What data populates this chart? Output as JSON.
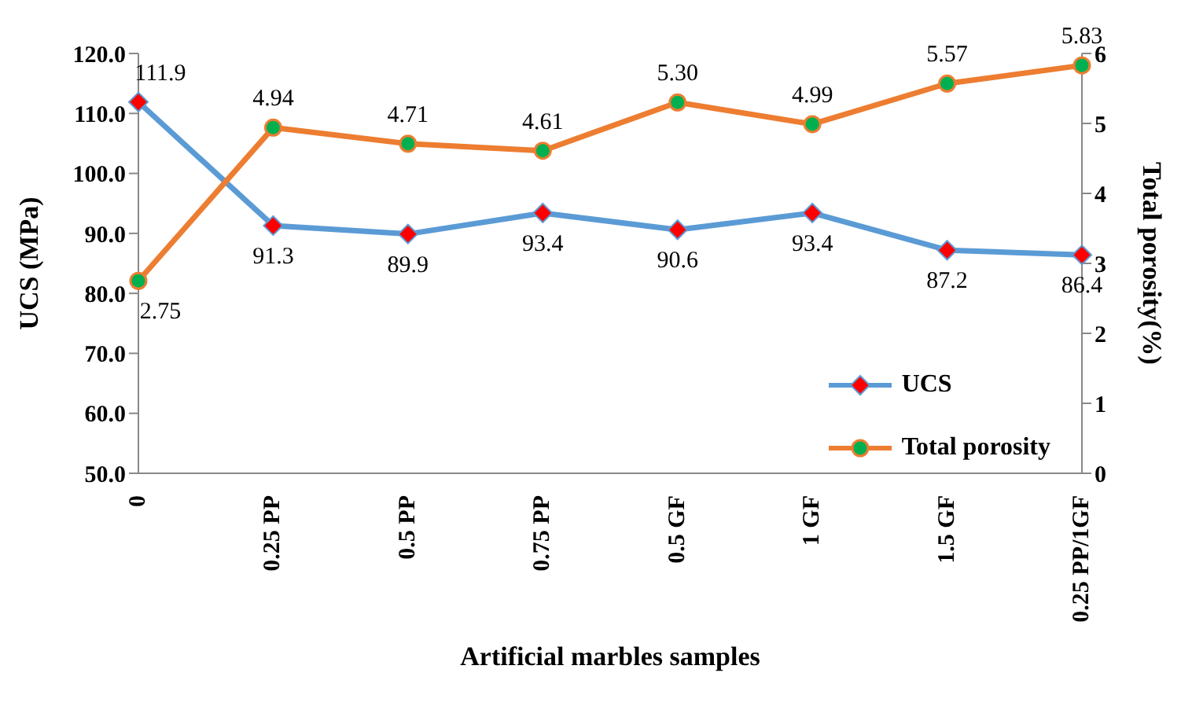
{
  "chart_data": {
    "type": "line",
    "xlabel": "Artificial marbles samples",
    "ylabel": "UCS (MPa)",
    "y2label": "Total porosity(%)",
    "categories": [
      "0",
      "0.25 PP",
      "0.5 PP",
      "0.75 PP",
      "0.5 GF",
      "1 GF",
      "1.5 GF",
      "0.25 PP/1GF"
    ],
    "series": [
      {
        "name": "UCS",
        "color": "#5b9bd5",
        "marker": "diamond",
        "values": [
          111.9,
          91.3,
          89.9,
          93.4,
          90.6,
          93.4,
          87.2,
          86.4
        ],
        "value_labels": [
          "111.9",
          "91.3",
          "89.9",
          "93.4",
          "90.6",
          "93.4",
          "87.2",
          "86.4"
        ]
      },
      {
        "name": "Total porosity",
        "color": "#ed7d31",
        "marker": "circle",
        "axis": "y2",
        "values": [
          2.75,
          4.94,
          4.71,
          4.61,
          5.3,
          4.99,
          5.57,
          5.83
        ],
        "value_labels": [
          "2.75",
          "4.94",
          "4.71",
          "4.61",
          "5.30",
          "4.99",
          "5.57",
          "5.83"
        ]
      }
    ],
    "ylim": [
      50,
      120
    ],
    "yticks": [
      {
        "value": 50,
        "label": "50.0"
      },
      {
        "value": 60,
        "label": "60.0"
      },
      {
        "value": 70,
        "label": "70.0"
      },
      {
        "value": 80,
        "label": "80.0"
      },
      {
        "value": 90,
        "label": "90.0"
      },
      {
        "value": 100,
        "label": "100.0"
      },
      {
        "value": 110,
        "label": "110.0"
      },
      {
        "value": 120,
        "label": "120.0"
      }
    ],
    "y2lim": [
      0,
      6
    ],
    "y2ticks": [
      0,
      1,
      2,
      3,
      4,
      5,
      6
    ],
    "legend": "bottom right",
    "grid": false
  }
}
